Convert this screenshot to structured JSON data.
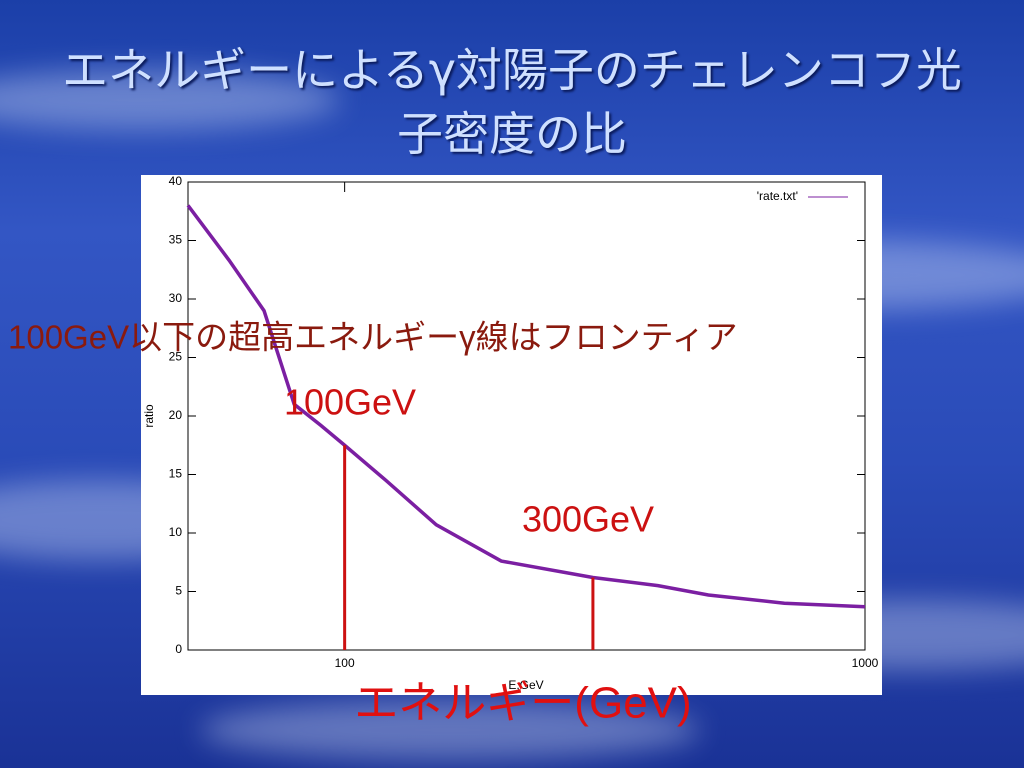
{
  "chart_data": {
    "type": "line",
    "title": "エネルギーによるγ対陽子のチェレンコフ光子密度の比",
    "x_label": "E,GeV",
    "y_label": "ratio",
    "log_x": true,
    "xlim": [
      50,
      1000
    ],
    "ylim": [
      0,
      40
    ],
    "xticks": [
      100,
      1000
    ],
    "yticks": [
      0,
      5,
      10,
      15,
      20,
      25,
      30,
      35,
      40
    ],
    "legend_position": "top-right",
    "series": [
      {
        "name": "'rate.txt'",
        "color": "#7b1fa2",
        "x": [
          50,
          60,
          70,
          80,
          90,
          100,
          120,
          150,
          200,
          300,
          400,
          500,
          700,
          1000
        ],
        "values": [
          38.0,
          33.3,
          29.0,
          21.0,
          19.2,
          17.5,
          14.5,
          10.7,
          7.6,
          6.2,
          5.5,
          4.7,
          4.0,
          3.7
        ]
      }
    ],
    "markers": [
      {
        "label": "100GeV",
        "x": 100,
        "value": 17.5,
        "color": "#cc1111"
      },
      {
        "label": "300GeV",
        "x": 300,
        "value": 6.2,
        "color": "#cc1111"
      }
    ],
    "annotations": [
      "100GeV以下の超高エネルギーγ線はフロンティア",
      "エネルギー(GeV)"
    ]
  }
}
